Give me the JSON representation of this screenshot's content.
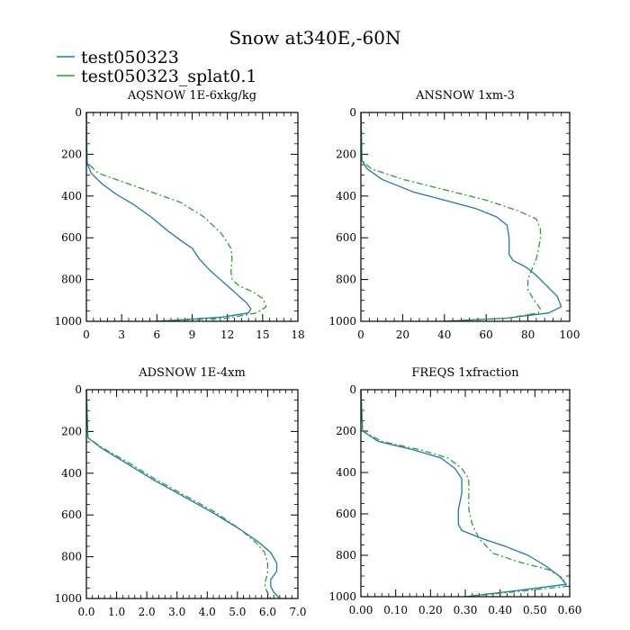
{
  "figure_title": "Snow at340E,-60N",
  "legend": [
    {
      "label": "test050323",
      "color": "#1f77b4",
      "dash": "solid"
    },
    {
      "label": "test050323_splat0.1",
      "color": "#2ca02c",
      "dash": "dashdot"
    }
  ],
  "chart_data": [
    {
      "type": "line",
      "title": "AQSNOW  1E-6xkg/kg",
      "xlim": [
        0,
        18
      ],
      "ylim": [
        1000,
        0
      ],
      "xticks": [
        0,
        3,
        6,
        9,
        12,
        15,
        18
      ],
      "xtick_labels": [
        "0",
        "3",
        "6",
        "9",
        "12",
        "15",
        "18"
      ],
      "yticks": [
        0,
        200,
        400,
        600,
        800,
        1000
      ],
      "ytick_labels": [
        "0",
        "200",
        "400",
        "600",
        "800",
        "1000"
      ],
      "series": [
        {
          "name": "test050323",
          "x": [
            0,
            0.05,
            0.4,
            1.3,
            2.5,
            4,
            5.5,
            7,
            8.2,
            9,
            9.6,
            10.4,
            11.2,
            12.2,
            13,
            13.6,
            14,
            13.8,
            11.5,
            6
          ],
          "y": [
            0,
            240,
            290,
            340,
            390,
            440,
            500,
            570,
            620,
            650,
            700,
            750,
            790,
            840,
            880,
            910,
            940,
            960,
            980,
            1000
          ]
        },
        {
          "name": "test050323_splat0.1",
          "x": [
            0,
            0.05,
            1,
            3,
            5.5,
            8,
            10,
            11.5,
            12.3,
            12.4,
            12.3,
            12.4,
            13,
            14.2,
            15,
            15.3,
            14.5,
            12,
            6
          ],
          "y": [
            0,
            240,
            290,
            330,
            380,
            430,
            500,
            580,
            650,
            700,
            760,
            800,
            830,
            860,
            890,
            930,
            960,
            985,
            1000
          ]
        }
      ]
    },
    {
      "type": "line",
      "title": "ANSNOW  1xm-3",
      "xlim": [
        0,
        100
      ],
      "ylim": [
        1000,
        0
      ],
      "xticks": [
        0,
        20,
        40,
        60,
        80,
        100
      ],
      "xtick_labels": [
        "0",
        "20",
        "40",
        "60",
        "80",
        "100"
      ],
      "yticks": [
        0,
        200,
        400,
        600,
        800,
        1000
      ],
      "ytick_labels": [
        "0",
        "200",
        "400",
        "600",
        "800",
        "1000"
      ],
      "series": [
        {
          "name": "test050323",
          "x": [
            0,
            0.5,
            3,
            10,
            25,
            40,
            55,
            65,
            70,
            71,
            71,
            73,
            79,
            84,
            89,
            94,
            96,
            90,
            70,
            40
          ],
          "y": [
            0,
            230,
            270,
            320,
            380,
            420,
            460,
            500,
            540,
            600,
            680,
            710,
            740,
            780,
            830,
            880,
            930,
            960,
            985,
            1000
          ]
        },
        {
          "name": "test050323_splat0.1",
          "x": [
            0,
            0.5,
            5,
            20,
            40,
            60,
            75,
            84,
            86,
            86,
            85,
            84,
            82,
            80,
            80,
            83,
            86,
            85,
            70,
            40
          ],
          "y": [
            0,
            230,
            270,
            320,
            370,
            420,
            470,
            510,
            560,
            600,
            660,
            700,
            750,
            800,
            850,
            900,
            940,
            960,
            985,
            1000
          ]
        }
      ]
    },
    {
      "type": "line",
      "title": "ADSNOW  1E-4xm",
      "xlim": [
        0,
        7
      ],
      "ylim": [
        1000,
        0
      ],
      "xticks": [
        0,
        1,
        2,
        3,
        4,
        5,
        6,
        7
      ],
      "xtick_labels": [
        "0.0",
        "1.0",
        "2.0",
        "3.0",
        "4.0",
        "5.0",
        "6.0",
        "7.0"
      ],
      "yticks": [
        0,
        200,
        400,
        600,
        800,
        1000
      ],
      "ytick_labels": [
        "0",
        "200",
        "400",
        "600",
        "800",
        "1000"
      ],
      "series": [
        {
          "name": "test050323",
          "x": [
            0,
            0.05,
            0.5,
            1.3,
            2.2,
            3.2,
            4.2,
            5.1,
            5.7,
            6.1,
            6.3,
            6.3,
            6.1,
            6.1,
            6.2,
            6.4
          ],
          "y": [
            0,
            230,
            280,
            350,
            430,
            510,
            590,
            670,
            730,
            780,
            830,
            870,
            910,
            940,
            970,
            1000
          ]
        },
        {
          "name": "test050323_splat0.1",
          "x": [
            0,
            0.05,
            0.55,
            1.4,
            2.3,
            3.3,
            4.3,
            5.1,
            5.6,
            5.9,
            6.0,
            6.0,
            5.9,
            5.95,
            6.1
          ],
          "y": [
            0,
            230,
            280,
            350,
            430,
            510,
            590,
            670,
            730,
            780,
            830,
            880,
            930,
            960,
            1000
          ]
        }
      ]
    },
    {
      "type": "line",
      "title": "FREQS  1xfraction",
      "xlim": [
        0,
        0.6
      ],
      "ylim": [
        1000,
        0
      ],
      "xticks": [
        0,
        0.1,
        0.2,
        0.3,
        0.4,
        0.5,
        0.6
      ],
      "xtick_labels": [
        "0.00",
        "0.10",
        "0.20",
        "0.30",
        "0.40",
        "0.50",
        "0.60"
      ],
      "yticks": [
        0,
        200,
        400,
        600,
        800,
        1000
      ],
      "ytick_labels": [
        "0",
        "200",
        "400",
        "600",
        "800",
        "1000"
      ],
      "series": [
        {
          "name": "test050323",
          "x": [
            0,
            0.005,
            0.05,
            0.15,
            0.23,
            0.27,
            0.29,
            0.29,
            0.28,
            0.28,
            0.29,
            0.35,
            0.42,
            0.48,
            0.53,
            0.57,
            0.59,
            0.45,
            0.3
          ],
          "y": [
            0,
            200,
            250,
            290,
            330,
            380,
            430,
            500,
            580,
            650,
            680,
            720,
            760,
            800,
            850,
            900,
            940,
            970,
            1000
          ]
        },
        {
          "name": "test050323_splat0.1",
          "x": [
            0,
            0.005,
            0.06,
            0.17,
            0.25,
            0.29,
            0.31,
            0.31,
            0.31,
            0.32,
            0.34,
            0.38,
            0.45,
            0.54,
            0.58,
            0.59,
            0.45,
            0.3
          ],
          "y": [
            0,
            200,
            250,
            290,
            330,
            380,
            430,
            500,
            580,
            650,
            720,
            790,
            830,
            870,
            910,
            950,
            975,
            1000
          ]
        }
      ]
    }
  ]
}
